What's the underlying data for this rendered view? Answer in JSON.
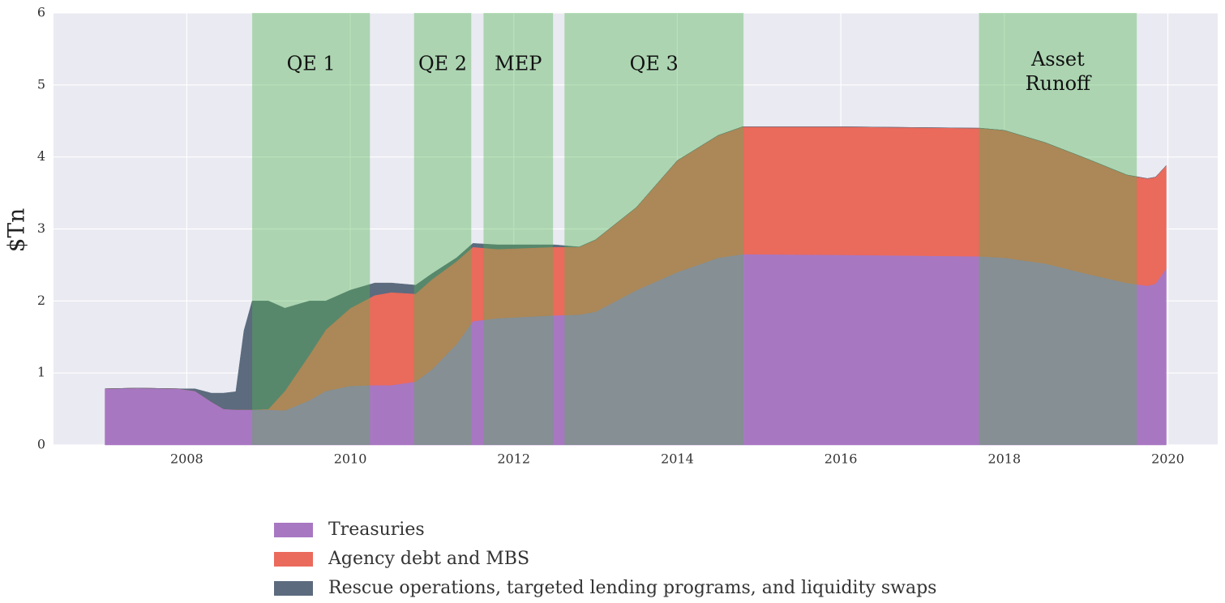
{
  "chart_data": {
    "type": "stacked_area",
    "y_label": "$Tn",
    "x": [
      2007.0,
      2007.4,
      2007.9,
      2008.1,
      2008.3,
      2008.45,
      2008.6,
      2008.7,
      2008.8,
      2009.0,
      2009.2,
      2009.5,
      2009.7,
      2010.0,
      2010.3,
      2010.5,
      2010.8,
      2011.0,
      2011.3,
      2011.5,
      2011.8,
      2012.5,
      2012.8,
      2013.0,
      2013.5,
      2014.0,
      2014.5,
      2014.8,
      2016.0,
      2017.7,
      2018.0,
      2018.5,
      2019.0,
      2019.5,
      2019.75,
      2019.85,
      2019.98
    ],
    "series": [
      {
        "name": "Treasuries",
        "color": "#a877c2",
        "values": [
          0.78,
          0.79,
          0.78,
          0.75,
          0.6,
          0.5,
          0.49,
          0.49,
          0.49,
          0.49,
          0.48,
          0.62,
          0.75,
          0.82,
          0.83,
          0.83,
          0.88,
          1.05,
          1.4,
          1.72,
          1.76,
          1.8,
          1.81,
          1.85,
          2.15,
          2.4,
          2.6,
          2.65,
          2.64,
          2.62,
          2.6,
          2.52,
          2.38,
          2.25,
          2.21,
          2.24,
          2.45
        ]
      },
      {
        "name": "Agency debt and MBS",
        "color": "#ea6a5c",
        "values": [
          0,
          0,
          0,
          0,
          0,
          0,
          0,
          0,
          0,
          0.01,
          0.27,
          0.63,
          0.85,
          1.08,
          1.25,
          1.29,
          1.22,
          1.25,
          1.15,
          1.03,
          0.96,
          0.95,
          0.94,
          1.0,
          1.15,
          1.55,
          1.7,
          1.77,
          1.78,
          1.78,
          1.77,
          1.68,
          1.6,
          1.5,
          1.49,
          1.48,
          1.43
        ]
      },
      {
        "name": "Rescue operations, targeted lending programs, and liquidity swaps",
        "color": "#5c6b7e",
        "values": [
          0,
          0,
          0,
          0.03,
          0.12,
          0.22,
          0.25,
          1.1,
          1.51,
          1.5,
          1.15,
          0.75,
          0.4,
          0.25,
          0.17,
          0.13,
          0.12,
          0.08,
          0.05,
          0.05,
          0.06,
          0.03,
          0,
          0,
          0,
          0,
          0,
          0,
          0,
          0,
          0,
          0,
          0,
          0,
          0,
          0,
          0
        ]
      }
    ],
    "spans": [
      {
        "label": "QE 1",
        "start": 2008.8,
        "end": 2010.24
      },
      {
        "label": "QE 2",
        "start": 2010.78,
        "end": 2011.48
      },
      {
        "label": "MEP",
        "start": 2011.63,
        "end": 2012.48
      },
      {
        "label": "QE 3",
        "start": 2012.62,
        "end": 2014.81
      },
      {
        "label": "Asset\nRunoff",
        "start": 2017.69,
        "end": 2019.62
      }
    ],
    "span_color": "#4fb44f",
    "xlim": [
      2006.37,
      2020.61
    ],
    "ylim": [
      0,
      6
    ],
    "xticks": [
      2008,
      2010,
      2012,
      2014,
      2016,
      2018,
      2020
    ],
    "yticks": [
      0,
      1,
      2,
      3,
      4,
      5,
      6
    ],
    "grid": true,
    "legend": "below"
  }
}
